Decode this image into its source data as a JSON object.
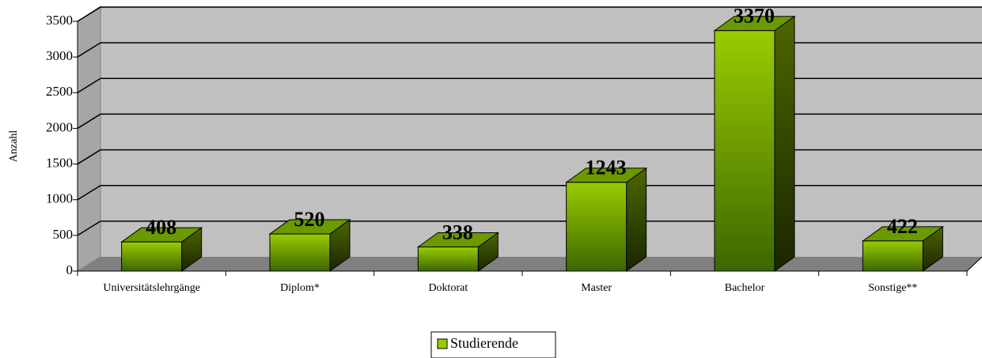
{
  "chart_data": {
    "type": "bar",
    "y_label": "Anzahl",
    "categories": [
      "Universitätslehrgänge",
      "Diplom*",
      "Doktorat",
      "Master",
      "Bachelor",
      "Sonstige**"
    ],
    "series": [
      {
        "name": "Studierende",
        "color": "#99cc00",
        "values": [
          408,
          520,
          338,
          1243,
          3370,
          422
        ]
      }
    ],
    "ylim": [
      0,
      3500
    ],
    "yticks": [
      0,
      500,
      1000,
      1500,
      2000,
      2500,
      3000,
      3500
    ],
    "grid": true
  }
}
